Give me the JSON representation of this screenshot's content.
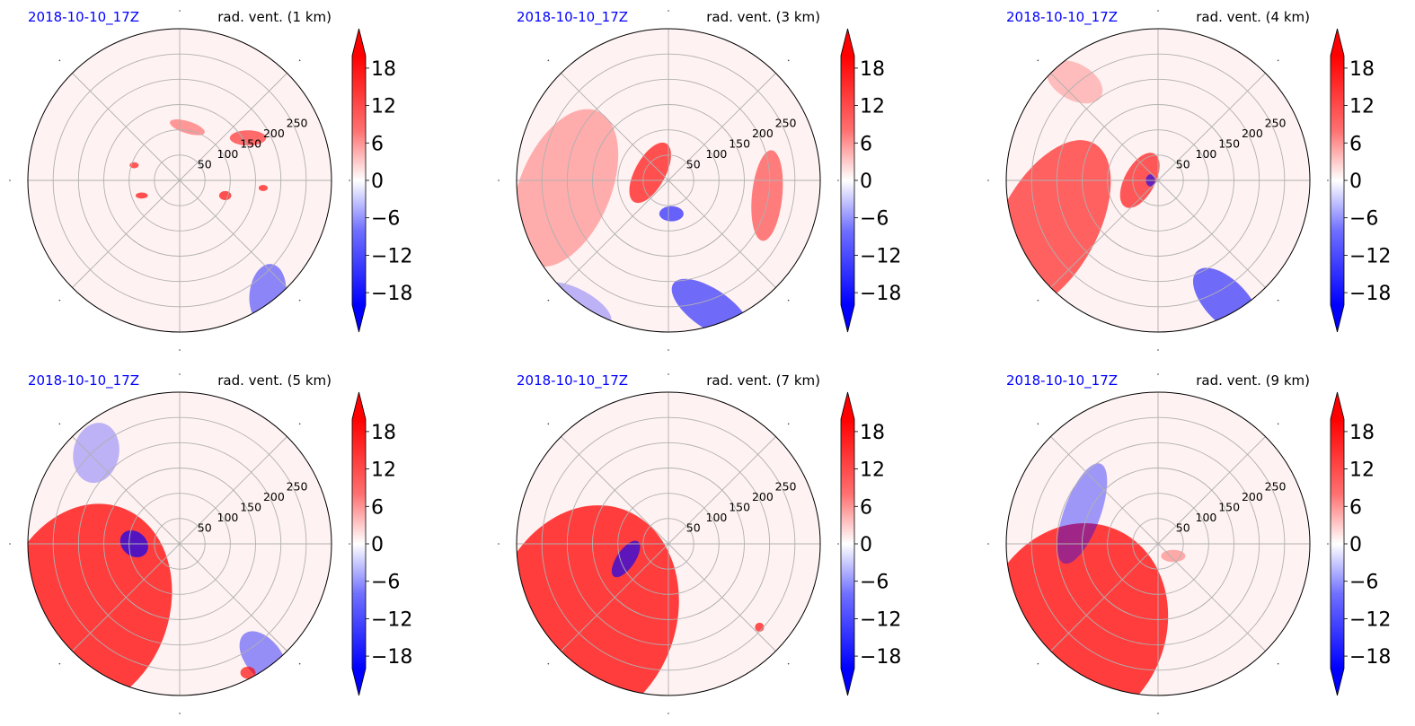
{
  "colors": {
    "positive": "#ff0000",
    "negative": "#0000ff",
    "neutral": "#ffffff",
    "date_label": "#0000ff"
  },
  "chart_data": [
    {
      "type": "heatmap",
      "date_label": "2018-10-10_17Z",
      "title": "rad. vent. (1 km)",
      "radial_ticks": [
        "50",
        "100",
        "150",
        "200",
        "250"
      ],
      "rlim": [
        0,
        300
      ],
      "colorbar": {
        "ticks": [
          "18",
          "12",
          "6",
          "0",
          "−6",
          "−12",
          "−18"
        ],
        "vmin": -20,
        "vmax": 20,
        "extend": "both"
      }
    },
    {
      "type": "heatmap",
      "date_label": "2018-10-10_17Z",
      "title": "rad. vent. (3 km)",
      "radial_ticks": [
        "50",
        "100",
        "150",
        "200",
        "250"
      ],
      "rlim": [
        0,
        300
      ],
      "colorbar": {
        "ticks": [
          "18",
          "12",
          "6",
          "0",
          "−6",
          "−12",
          "−18"
        ],
        "vmin": -20,
        "vmax": 20,
        "extend": "both"
      }
    },
    {
      "type": "heatmap",
      "date_label": "2018-10-10_17Z",
      "title": "rad. vent. (4 km)",
      "radial_ticks": [
        "50",
        "100",
        "150",
        "200",
        "250"
      ],
      "rlim": [
        0,
        300
      ],
      "colorbar": {
        "ticks": [
          "18",
          "12",
          "6",
          "0",
          "−6",
          "−12",
          "−18"
        ],
        "vmin": -20,
        "vmax": 20,
        "extend": "both"
      }
    },
    {
      "type": "heatmap",
      "date_label": "2018-10-10_17Z",
      "title": "rad. vent. (5 km)",
      "radial_ticks": [
        "50",
        "100",
        "150",
        "200",
        "250"
      ],
      "rlim": [
        0,
        300
      ],
      "colorbar": {
        "ticks": [
          "18",
          "12",
          "6",
          "0",
          "−6",
          "−12",
          "−18"
        ],
        "vmin": -20,
        "vmax": 20,
        "extend": "both"
      }
    },
    {
      "type": "heatmap",
      "date_label": "2018-10-10_17Z",
      "title": "rad. vent. (7 km)",
      "radial_ticks": [
        "50",
        "100",
        "150",
        "200",
        "250"
      ],
      "rlim": [
        0,
        300
      ],
      "colorbar": {
        "ticks": [
          "18",
          "12",
          "6",
          "0",
          "−6",
          "−12",
          "−18"
        ],
        "vmin": -20,
        "vmax": 20,
        "extend": "both"
      }
    },
    {
      "type": "heatmap",
      "date_label": "2018-10-10_17Z",
      "title": "rad. vent. (9 km)",
      "radial_ticks": [
        "50",
        "100",
        "150",
        "200",
        "250"
      ],
      "rlim": [
        0,
        300
      ],
      "colorbar": {
        "ticks": [
          "18",
          "12",
          "6",
          "0",
          "−6",
          "−12",
          "−18"
        ],
        "vmin": -20,
        "vmax": 20,
        "extend": "both"
      }
    }
  ]
}
